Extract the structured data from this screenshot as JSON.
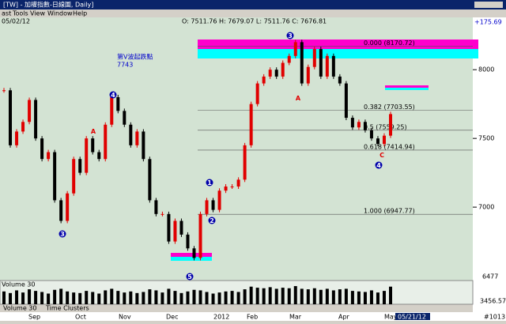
{
  "window": {
    "title": "[TW] - 加權指數-日線圖, Daily]",
    "menu": [
      "ast",
      "Tools",
      "View",
      "Window",
      "Help"
    ],
    "date": "05/02/12",
    "ohlc": "O: 7511.76  H: 7679.07  L: 7511.76  C: 7676.81",
    "tabs": [
      "Volume 30",
      "Time Clusters"
    ],
    "cursor_date": "05/21/12",
    "bar_count": "#1013"
  },
  "chart_data": {
    "type": "candlestick",
    "ylim": [
      6466,
      8300
    ],
    "yticks": [
      8000,
      7500,
      7000
    ],
    "change_label": "+175.69",
    "low_label": "6477",
    "up_color": "#e00000",
    "down_color": "#000000",
    "closes": [
      7850,
      7450,
      7550,
      7620,
      7780,
      7500,
      7350,
      7400,
      7050,
      6900,
      7100,
      7350,
      7250,
      7500,
      7400,
      7350,
      7600,
      7800,
      7700,
      7600,
      7450,
      7550,
      7350,
      7050,
      6950,
      6950,
      6750,
      6900,
      6800,
      6700,
      6630,
      6950,
      7050,
      6980,
      7120,
      7150,
      7150,
      7200,
      7450,
      7750,
      7900,
      7950,
      8000,
      7950,
      8050,
      8100,
      8200,
      7900,
      8020,
      8150,
      7950,
      8100,
      7950,
      7900,
      7650,
      7580,
      7620,
      7560,
      7500,
      7460,
      7520,
      7677
    ],
    "volume": [
      2400,
      2100,
      2600,
      2200,
      2800,
      2500,
      2300,
      2000,
      2700,
      2900,
      2400,
      2200,
      2100,
      2500,
      2300,
      2000,
      2600,
      2900,
      2500,
      2200,
      2400,
      2100,
      2300,
      2800,
      2600,
      2200,
      2900,
      2500,
      2100,
      2400,
      2700,
      2600,
      2300,
      2000,
      2200,
      2400,
      2500,
      2300,
      2800,
      3300,
      3100,
      3000,
      3200,
      2900,
      3100,
      3000,
      3400,
      2900,
      2800,
      3000,
      2700,
      2900,
      2600,
      2800,
      2900,
      2500,
      2400,
      2300,
      2600,
      2200,
      2500,
      3300
    ],
    "volume_label": "Volume 30",
    "volume_ylim": [
      0,
      4000
    ],
    "volume_tick": "3456.57",
    "fib": [
      {
        "label": "0.000 (8170.72)",
        "value": 8170.72
      },
      {
        "label": "0.382 (7703.55)",
        "value": 7703.55
      },
      {
        "label": "0.5 (7559.25)",
        "value": 7559.25
      },
      {
        "label": "0.618 (7414.94)",
        "value": 7414.94
      },
      {
        "label": "1.000 (6947.77)",
        "value": 6947.77
      }
    ],
    "months": [
      "Sep",
      "Oct",
      "Nov",
      "Dec",
      "2012",
      "Feb",
      "Mar",
      "Apr",
      "May"
    ]
  },
  "annotations": [
    "第V波起跌點",
    "7743",
    "3",
    "4",
    "3",
    "5",
    "1",
    "2",
    "4",
    "A",
    "A",
    "C"
  ]
}
